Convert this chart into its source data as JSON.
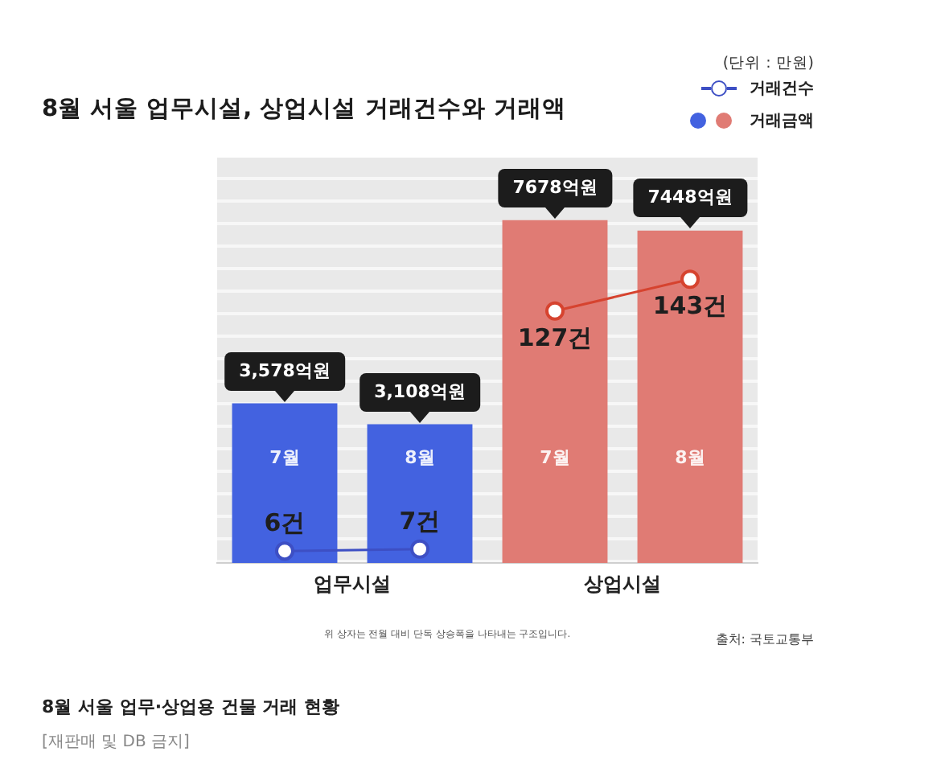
{
  "chart_data": {
    "type": "bar",
    "title": "8월 서울 업무시설, 상업시설 거래건수와 거래액",
    "categories": [
      "7월",
      "8월",
      "7월",
      "8월"
    ],
    "series": [
      {
        "name": "거래금액",
        "colors": [
          "#4362e0",
          "#4362e0",
          "#e07b74",
          "#e07b74"
        ],
        "values": [
          3578,
          3108,
          7678,
          7448
        ],
        "value_labels": [
          "3,578억원",
          "3,108억원",
          "7678억원",
          "7448억원"
        ]
      },
      {
        "name": "거래건수",
        "type": "line",
        "axis": "y2",
        "color": "#3d4fc4",
        "values": [
          6,
          7,
          null,
          null
        ],
        "value_labels": [
          "6건",
          "7건",
          null,
          null
        ]
      },
      {
        "type": "line",
        "axis": "y2",
        "color": "#d6432f",
        "values": [
          null,
          null,
          127,
          143
        ],
        "value_labels": [
          null,
          null,
          "127건",
          "143건"
        ]
      }
    ],
    "marker": "circle",
    "legend": "top right",
    "annotations": [
      "(단위 : 만원)",
      "업무시설",
      "상업시설",
      "위 상자는 전월 대비 단독 상승폭을 나타내는 구조입니다.",
      "출처: 국토교통부",
      "8월 서울 업무·상업용 건물 거래 현황",
      "[재판매 및 DB 금지]"
    ]
  }
}
